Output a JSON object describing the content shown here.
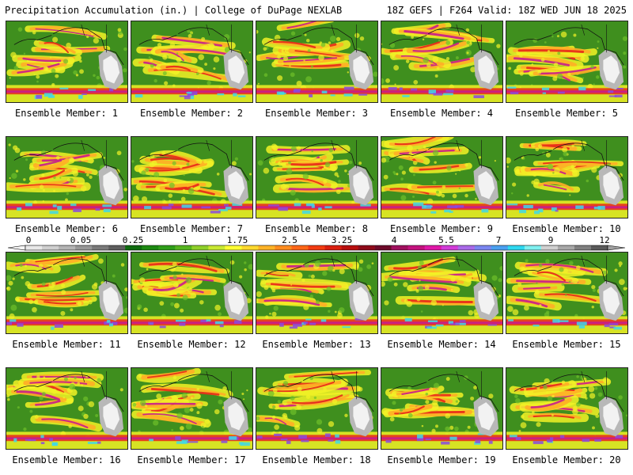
{
  "header": {
    "left": "Precipitation Accumulation (in.) | College of DuPage NEXLAB",
    "right": "18Z GEFS | F264 Valid: 18Z WED JUN 18 2025"
  },
  "members": [
    {
      "label": "Ensemble Member: 1"
    },
    {
      "label": "Ensemble Member: 2"
    },
    {
      "label": "Ensemble Member: 3"
    },
    {
      "label": "Ensemble Member: 4"
    },
    {
      "label": "Ensemble Member: 5"
    },
    {
      "label": "Ensemble Member: 6"
    },
    {
      "label": "Ensemble Member: 7"
    },
    {
      "label": "Ensemble Member: 8"
    },
    {
      "label": "Ensemble Member: 9"
    },
    {
      "label": "Ensemble Member: 10"
    },
    {
      "label": "Ensemble Member: 11"
    },
    {
      "label": "Ensemble Member: 12"
    },
    {
      "label": "Ensemble Member: 13"
    },
    {
      "label": "Ensemble Member: 14"
    },
    {
      "label": "Ensemble Member: 15"
    },
    {
      "label": "Ensemble Member: 16"
    },
    {
      "label": "Ensemble Member: 17"
    },
    {
      "label": "Ensemble Member: 18"
    },
    {
      "label": "Ensemble Member: 19"
    },
    {
      "label": "Ensemble Member: 20"
    }
  ],
  "colorbar": {
    "tick_labels": [
      "0",
      "0.05",
      "0.25",
      "1",
      "1.75",
      "2.5",
      "3.25",
      "4",
      "5.5",
      "7",
      "9",
      "12"
    ],
    "colors": [
      "#e8e8e8",
      "#cfcfcf",
      "#b4b4b4",
      "#979797",
      "#7a7a7a",
      "#5e5e5e",
      "#0f6b0f",
      "#1d8a12",
      "#2f9e1a",
      "#55b41f",
      "#8fd02a",
      "#c8e832",
      "#ffff33",
      "#ffd92e",
      "#ffb327",
      "#ff8c1f",
      "#ff6618",
      "#f23c12",
      "#d91f10",
      "#b80e0e",
      "#8f0a1a",
      "#6e0a2a",
      "#a0105e",
      "#c3127e",
      "#e018a8",
      "#d23cd8",
      "#a96ae8",
      "#7a86f0",
      "#4aa0f0",
      "#2ed8f0",
      "#7ff0f0",
      "#d0d0d0",
      "#a8a8a8",
      "#808080",
      "#5a5a5a"
    ]
  },
  "map_palette": {
    "base": "#3f8f1e",
    "light": "#6fbf2a",
    "yellow": "#f2f226",
    "orange": "#ffae26",
    "red": "#e8281a",
    "magenta": "#c81c8c",
    "purple": "#8a4ae0",
    "cyan": "#40d8e8",
    "land_gray": "#b8b8b8",
    "land_white": "#f2f2f2"
  }
}
